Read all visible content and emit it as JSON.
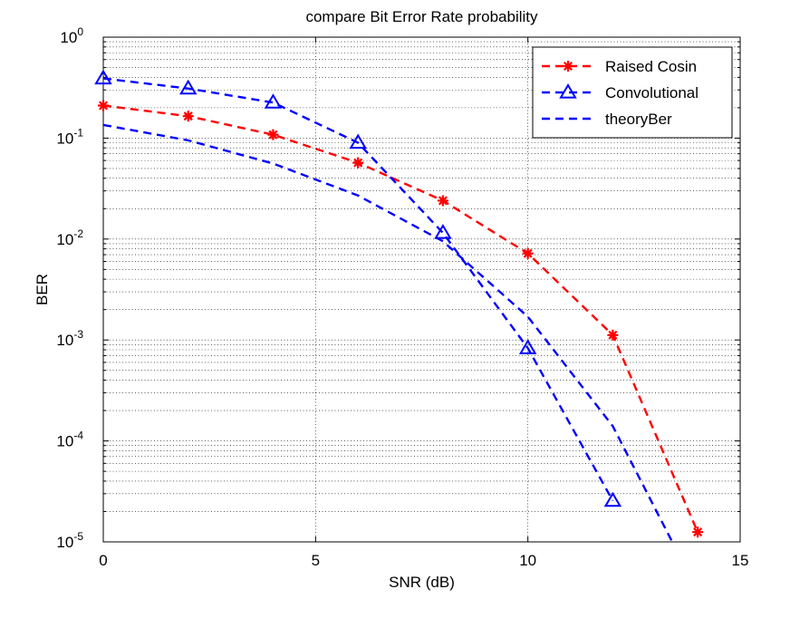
{
  "chart_data": {
    "type": "line",
    "title": "compare Bit Error Rate probability",
    "xlabel": "SNR (dB)",
    "ylabel": "BER",
    "xlim": [
      0,
      15
    ],
    "ylim": [
      1e-05,
      1
    ],
    "yscale": "log",
    "grid": true,
    "legend_position": "top-right",
    "x_ticks": [
      {
        "value": 0,
        "label": "0"
      },
      {
        "value": 5,
        "label": "5"
      },
      {
        "value": 10,
        "label": "10"
      },
      {
        "value": 15,
        "label": "15"
      }
    ],
    "y_ticks": [
      {
        "value": 1,
        "base": "10",
        "exp": "0"
      },
      {
        "value": 0.1,
        "base": "10",
        "exp": "-1"
      },
      {
        "value": 0.01,
        "base": "10",
        "exp": "-2"
      },
      {
        "value": 0.001,
        "base": "10",
        "exp": "-3"
      },
      {
        "value": 0.0001,
        "base": "10",
        "exp": "-4"
      },
      {
        "value": 1e-05,
        "base": "10",
        "exp": "-5"
      }
    ],
    "series": [
      {
        "name": "Raised Cosin",
        "color": "#ff0000",
        "marker": "star",
        "x": [
          0,
          2,
          4,
          6,
          8,
          10,
          12,
          14
        ],
        "y": [
          0.21,
          0.165,
          0.108,
          0.057,
          0.024,
          0.0072,
          0.00112,
          1.25e-05
        ]
      },
      {
        "name": "Convolutional",
        "color": "#0000ff",
        "marker": "triangle",
        "x": [
          0,
          2,
          4,
          6,
          8,
          10,
          12
        ],
        "y": [
          0.39,
          0.31,
          0.225,
          0.09,
          0.0115,
          0.00083,
          2.55e-05
        ]
      },
      {
        "name": "theoryBer",
        "color": "#0000ff",
        "marker": "none",
        "x": [
          0,
          2,
          4,
          6,
          8,
          10,
          12,
          13.4
        ],
        "y": [
          0.135,
          0.095,
          0.056,
          0.027,
          0.0095,
          0.0017,
          0.00014,
          1e-05
        ]
      }
    ]
  }
}
